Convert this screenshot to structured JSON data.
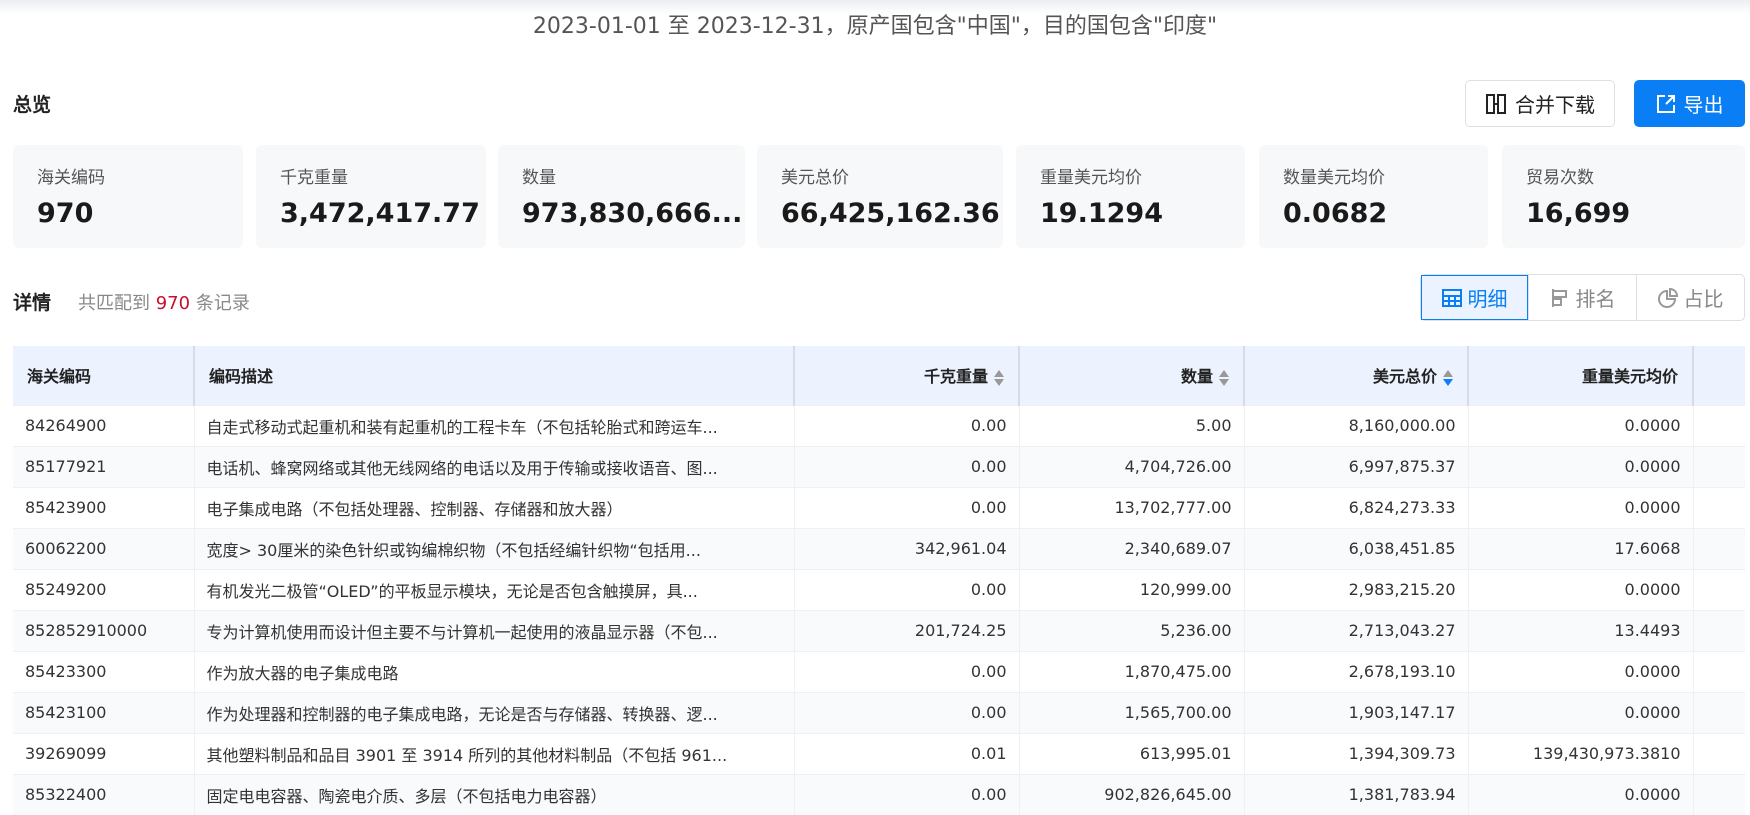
{
  "title": "2023-01-01 至 2023-12-31，原产国包含\"中国\"，目的国包含\"印度\"",
  "overview": {
    "label": "总览",
    "merge_download": "合并下载",
    "export": "导出",
    "cards": [
      {
        "label": "海关编码",
        "value": "970"
      },
      {
        "label": "千克重量",
        "value": "3,472,417.77"
      },
      {
        "label": "数量",
        "value": "973,830,666..."
      },
      {
        "label": "美元总价",
        "value": "66,425,162.36"
      },
      {
        "label": "重量美元均价",
        "value": "19.1294"
      },
      {
        "label": "数量美元均价",
        "value": "0.0682"
      },
      {
        "label": "贸易次数",
        "value": "16,699"
      }
    ]
  },
  "detail": {
    "label": "详情",
    "prefix": "共匹配到",
    "count": "970",
    "suffix": "条记录",
    "views": [
      "明细",
      "排名",
      "占比"
    ],
    "active_view": "明细"
  },
  "accent": "#0a7ff5",
  "table": {
    "columns": [
      "海关编码",
      "编码描述",
      "千克重量",
      "数量",
      "美元总价",
      "重量美元均价"
    ],
    "sorted_column": "美元总价",
    "sort_direction": "desc",
    "rows": [
      [
        "84264900",
        "自走式移动式起重机和装有起重机的工程卡车（不包括轮胎式和跨运车...",
        "0.00",
        "5.00",
        "8,160,000.00",
        "0.0000"
      ],
      [
        "85177921",
        "电话机、蜂窝网络或其他无线网络的电话以及用于传输或接收语音、图...",
        "0.00",
        "4,704,726.00",
        "6,997,875.37",
        "0.0000"
      ],
      [
        "85423900",
        "电子集成电路（不包括处理器、控制器、存储器和放大器）",
        "0.00",
        "13,702,777.00",
        "6,824,273.33",
        "0.0000"
      ],
      [
        "60062200",
        "宽度> 30厘米的染色针织或钩编棉织物（不包括经编针织物“包括用...",
        "342,961.04",
        "2,340,689.07",
        "6,038,451.85",
        "17.6068"
      ],
      [
        "85249200",
        "有机发光二极管“OLED”的平板显示模块，无论是否包含触摸屏，具...",
        "0.00",
        "120,999.00",
        "2,983,215.20",
        "0.0000"
      ],
      [
        "852852910000",
        "专为计算机使用而设计但主要不与计算机一起使用的液晶显示器（不包...",
        "201,724.25",
        "5,236.00",
        "2,713,043.27",
        "13.4493"
      ],
      [
        "85423300",
        "作为放大器的电子集成电路",
        "0.00",
        "1,870,475.00",
        "2,678,193.10",
        "0.0000"
      ],
      [
        "85423100",
        "作为处理器和控制器的电子集成电路，无论是否与存储器、转换器、逻...",
        "0.00",
        "1,565,700.00",
        "1,903,147.17",
        "0.0000"
      ],
      [
        "39269099",
        "其他塑料制品和品目 3901 至 3914 所列的其他材料制品（不包括 961...",
        "0.01",
        "613,995.01",
        "1,394,309.73",
        "139,430,973.3810"
      ],
      [
        "85322400",
        "固定电电容器、陶瓷电介质、多层（不包括电力电容器）",
        "0.00",
        "902,826,645.00",
        "1,381,783.94",
        "0.0000"
      ]
    ]
  }
}
